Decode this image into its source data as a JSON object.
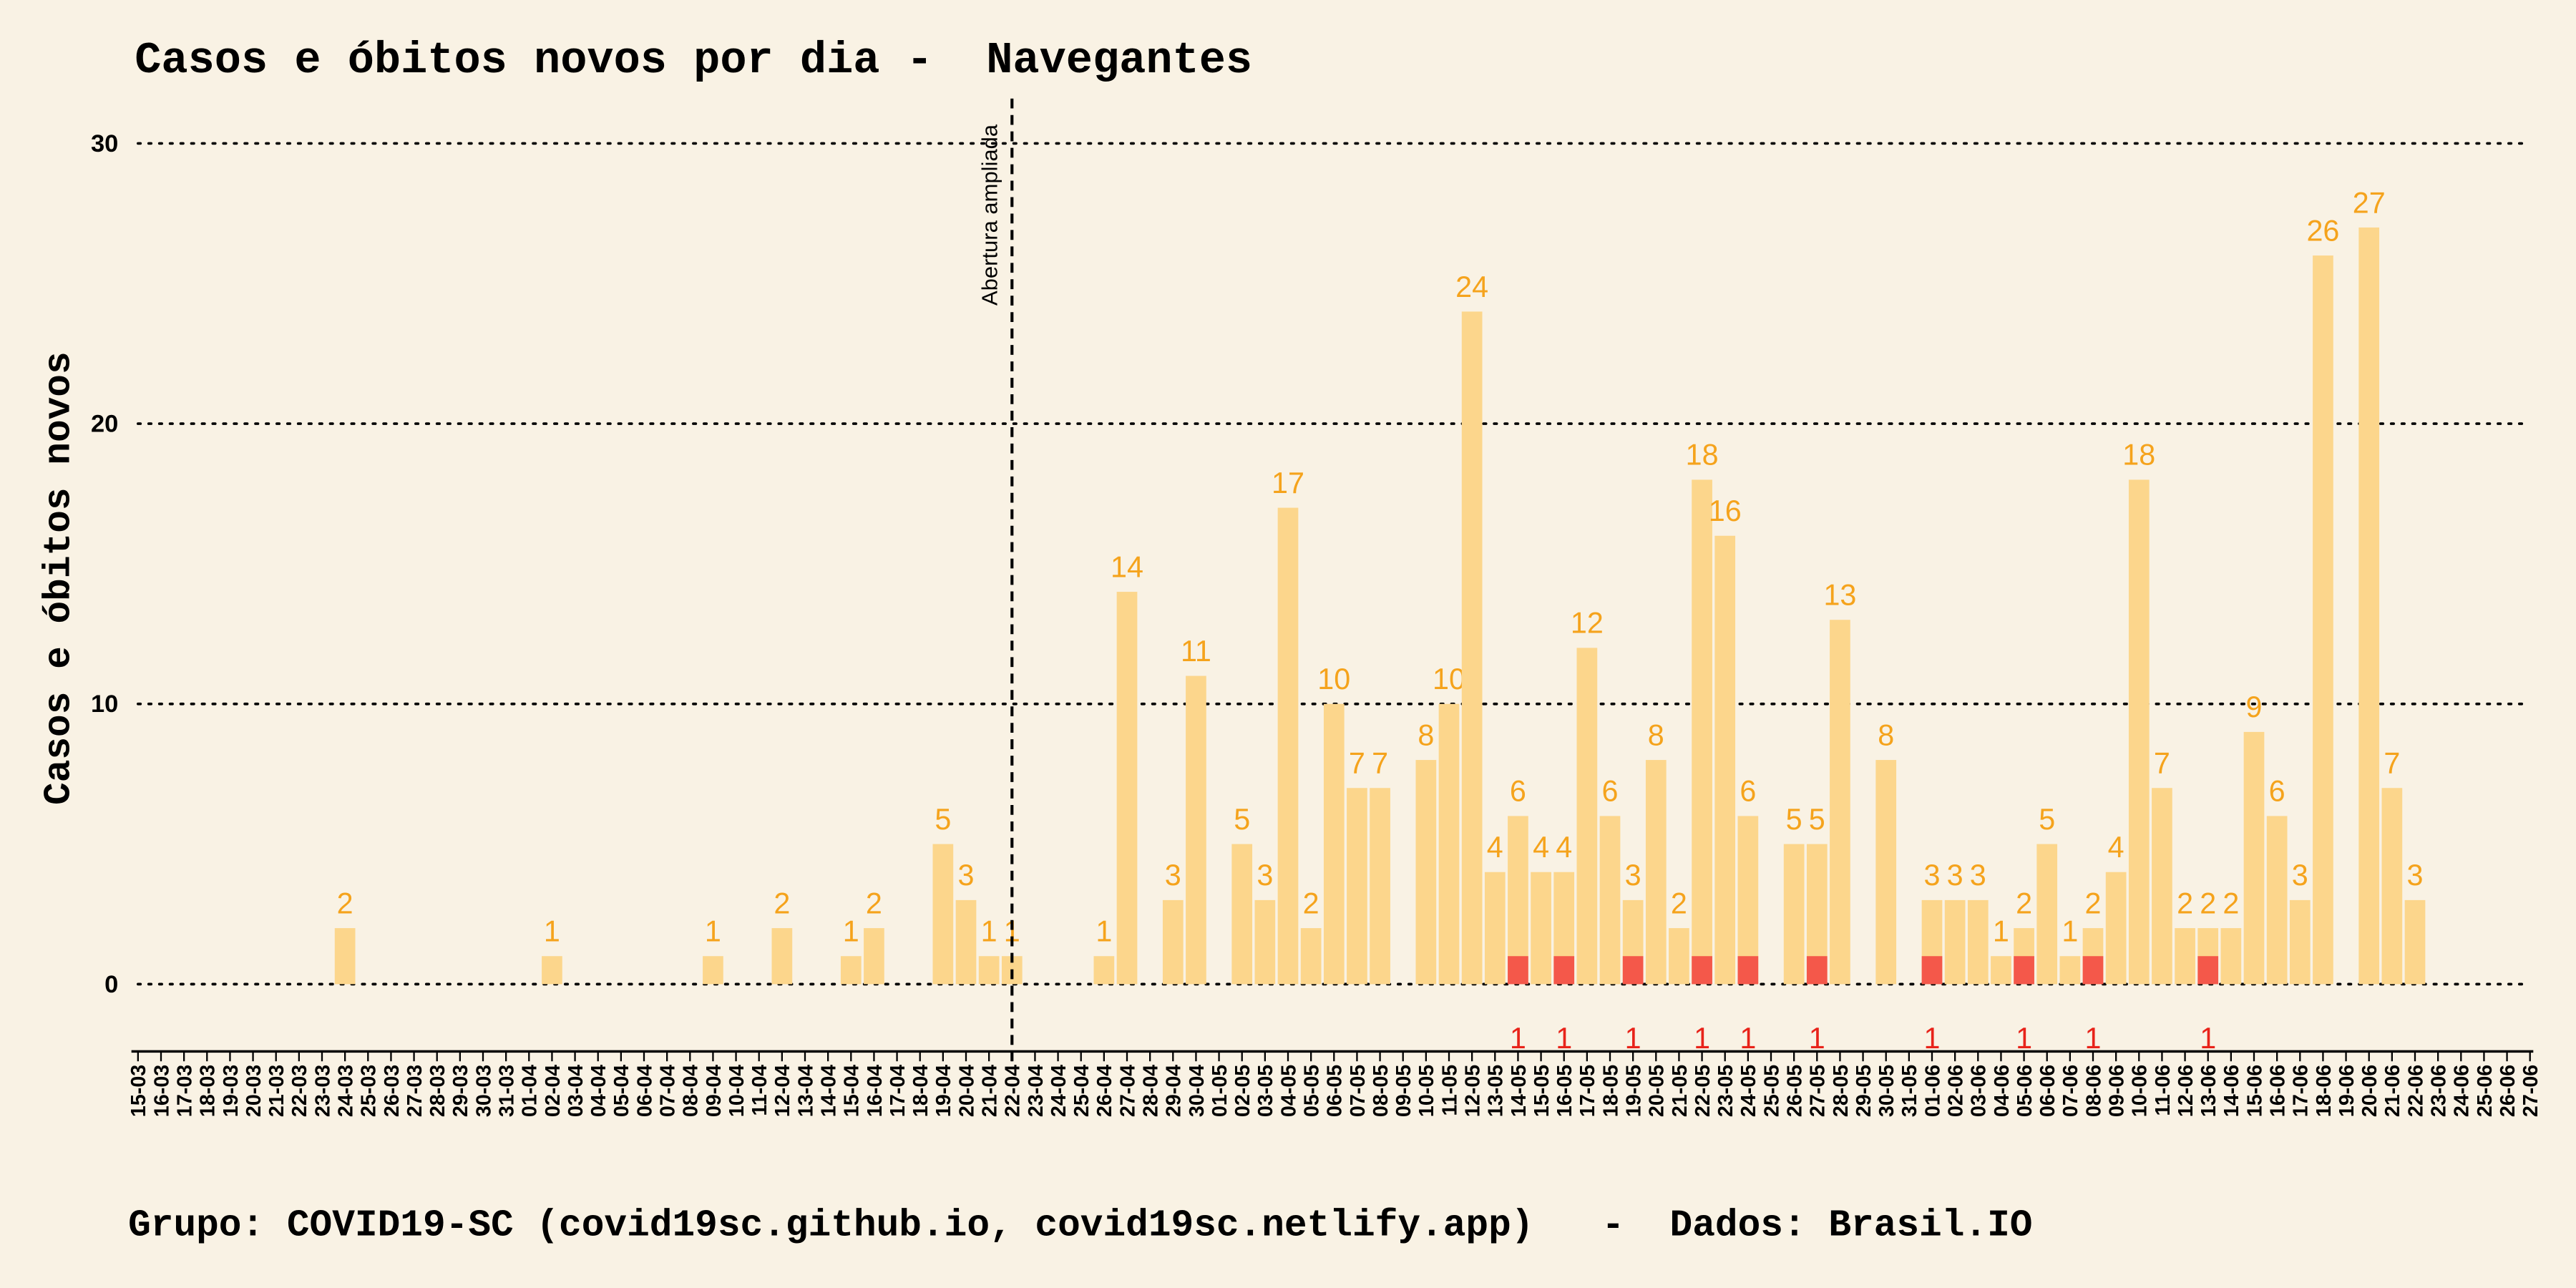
{
  "chart_data": {
    "type": "bar",
    "title": "Casos e óbitos novos por dia -  Navegantes",
    "ylabel": "Casos e óbitos novos",
    "footer": "Grupo: COVID19-SC (covid19sc.github.io, covid19sc.netlify.app)   -  Dados: Brasil.IO",
    "annotation": {
      "text": "Abertura ampliada",
      "x": "22-04"
    },
    "categories": [
      "15-03",
      "16-03",
      "17-03",
      "18-03",
      "19-03",
      "20-03",
      "21-03",
      "22-03",
      "23-03",
      "24-03",
      "25-03",
      "26-03",
      "27-03",
      "28-03",
      "29-03",
      "30-03",
      "31-03",
      "01-04",
      "02-04",
      "03-04",
      "04-04",
      "05-04",
      "06-04",
      "07-04",
      "08-04",
      "09-04",
      "10-04",
      "11-04",
      "12-04",
      "13-04",
      "14-04",
      "15-04",
      "16-04",
      "17-04",
      "18-04",
      "19-04",
      "20-04",
      "21-04",
      "22-04",
      "23-04",
      "24-04",
      "25-04",
      "26-04",
      "27-04",
      "28-04",
      "29-04",
      "30-04",
      "01-05",
      "02-05",
      "03-05",
      "04-05",
      "05-05",
      "06-05",
      "07-05",
      "08-05",
      "09-05",
      "10-05",
      "11-05",
      "12-05",
      "13-05",
      "14-05",
      "15-05",
      "16-05",
      "17-05",
      "18-05",
      "19-05",
      "20-05",
      "21-05",
      "22-05",
      "23-05",
      "24-05",
      "25-05",
      "26-05",
      "27-05",
      "28-05",
      "29-05",
      "30-05",
      "31-05",
      "01-06",
      "02-06",
      "03-06",
      "04-06",
      "05-06",
      "06-06",
      "07-06",
      "08-06",
      "09-06",
      "10-06",
      "11-06",
      "12-06",
      "13-06",
      "14-06",
      "15-06",
      "16-06",
      "17-06",
      "18-06",
      "19-06",
      "20-06",
      "21-06",
      "22-06",
      "23-06",
      "24-06",
      "25-06",
      "26-06",
      "27-06"
    ],
    "series": [
      {
        "color": "#fcd68c",
        "label_color": "#f5a31c",
        "values": [
          null,
          null,
          null,
          null,
          null,
          null,
          null,
          null,
          null,
          2,
          null,
          null,
          null,
          null,
          null,
          null,
          null,
          null,
          1,
          null,
          null,
          null,
          null,
          null,
          null,
          1,
          null,
          null,
          2,
          null,
          null,
          1,
          2,
          null,
          null,
          5,
          3,
          1,
          1,
          null,
          null,
          null,
          1,
          14,
          null,
          3,
          11,
          null,
          5,
          3,
          17,
          2,
          10,
          7,
          7,
          null,
          8,
          10,
          24,
          4,
          6,
          4,
          4,
          12,
          6,
          3,
          8,
          2,
          18,
          16,
          6,
          null,
          5,
          5,
          13,
          null,
          8,
          null,
          3,
          3,
          3,
          1,
          2,
          5,
          1,
          2,
          4,
          18,
          7,
          2,
          2,
          2,
          9,
          6,
          3,
          26,
          null,
          27,
          7,
          3,
          null,
          null,
          null,
          null,
          null
        ]
      },
      {
        "color": "#f4584a",
        "label_color": "#e8231a",
        "values": [
          null,
          null,
          null,
          null,
          null,
          null,
          null,
          null,
          null,
          null,
          null,
          null,
          null,
          null,
          null,
          null,
          null,
          null,
          null,
          null,
          null,
          null,
          null,
          null,
          null,
          null,
          null,
          null,
          null,
          null,
          null,
          null,
          null,
          null,
          null,
          null,
          null,
          null,
          null,
          null,
          null,
          null,
          null,
          null,
          null,
          null,
          null,
          null,
          null,
          null,
          null,
          null,
          null,
          null,
          null,
          null,
          null,
          null,
          null,
          null,
          1,
          null,
          1,
          null,
          null,
          1,
          null,
          null,
          1,
          null,
          1,
          null,
          null,
          1,
          null,
          null,
          null,
          null,
          1,
          null,
          null,
          null,
          1,
          null,
          null,
          1,
          null,
          null,
          null,
          null,
          1,
          null,
          null,
          null,
          null,
          null,
          null,
          null,
          null,
          null,
          null,
          null,
          null,
          null,
          null
        ]
      }
    ],
    "ylim": [
      -2.4,
      31.6
    ],
    "yticks": [
      0,
      10,
      20,
      30
    ],
    "grid": true
  }
}
